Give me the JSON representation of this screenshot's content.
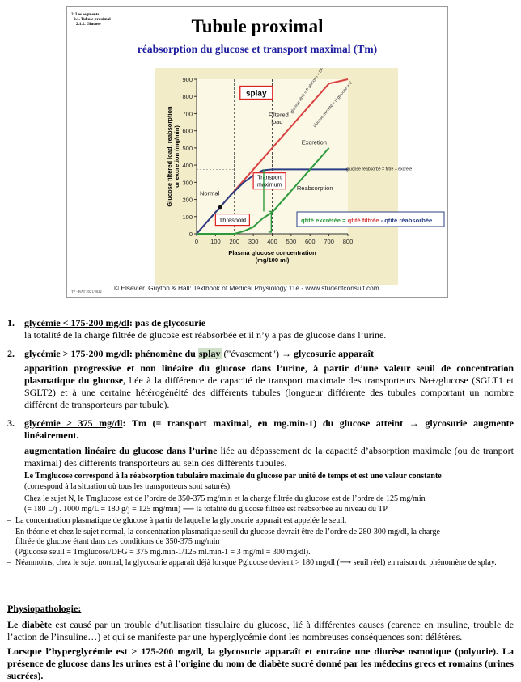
{
  "slide": {
    "toc": [
      "2. Les segments",
      "2.1. Tubule proximal",
      "2.1.2. Glucose"
    ],
    "title": "Tubule proximal",
    "subtitle": "réabsorption du glucose et transport maximal (Tm)",
    "footer": "TP - BAT 2021/2022",
    "credit": "© Elsevier. Guyton & Hall: Textbook of Medical Physiology 11e - www.studentconsult.com"
  },
  "chart_data": {
    "type": "line",
    "xlabel": "Plasma glucose concentration (mg/100 ml)",
    "ylabel": "Glucose filtered load, reabsorption or excretion (mg/min)",
    "xlim": [
      0,
      800
    ],
    "ylim": [
      0,
      900
    ],
    "xticks": [
      0,
      100,
      200,
      300,
      400,
      500,
      600,
      700,
      800
    ],
    "yticks": [
      0,
      100,
      200,
      300,
      400,
      500,
      600,
      700,
      800,
      900
    ],
    "series": [
      {
        "name": "Filtered load",
        "x": [
          0,
          100,
          200,
          300,
          400,
          500,
          600,
          700,
          800
        ],
        "y": [
          0,
          125,
          250,
          375,
          500,
          625,
          750,
          875,
          900
        ]
      },
      {
        "name": "Reabsorption",
        "x": [
          0,
          100,
          180,
          250,
          300,
          350,
          400,
          600,
          800
        ],
        "y": [
          0,
          125,
          225,
          300,
          340,
          370,
          375,
          375,
          375
        ]
      },
      {
        "name": "Excretion",
        "x": [
          0,
          200,
          250,
          300,
          350,
          400,
          500,
          600,
          700
        ],
        "y": [
          0,
          0,
          15,
          40,
          90,
          125,
          250,
          375,
          500
        ]
      }
    ],
    "annotations": {
      "splay": "splay",
      "filtered_load": "Filtered load",
      "excretion": "Excretion",
      "reabsorption": "Reabsorption",
      "transport_maximum": "Transport maximum",
      "normal": "Normal",
      "threshold": "Threshold",
      "slope_filtered": "glucose filtré = P glucose × DFG",
      "slope_excreted": "glucose excrété = U glucose × V",
      "reabsorbed": "glucose réabsorbé = filtré – excrété"
    },
    "legend": {
      "part1": "qtité excrétée = ",
      "part2": "qtité filtrée",
      "part3": " - qtité réabsorbée"
    }
  },
  "colors": {
    "filtered": "#d94040",
    "reabsorption": "#2a3f85",
    "excretion": "#2c9a3c",
    "highlight": "#cfe0c8",
    "subtitle": "#1f1fa0"
  },
  "sections": {
    "s1": {
      "num": "1.",
      "head": "glycémie < 175-200 mg/dl",
      "head_rest": ": pas de glycosurie",
      "text": "la totalité de la charge filtrée de glucose est réabsorbée et il n’y a pas de glucose dans l’urine."
    },
    "s2": {
      "num": "2.",
      "head": "glycémie > 175-200 mg/dl",
      "head_mid": ": phénomène du ",
      "splay": "splay",
      "head_paren": " (\"évasement\") ",
      "head_end": "→ glycosurie apparaît",
      "bold": "apparition progressive et non linéaire du glucose dans l’urine, à partir d’une valeur seuil de concentration plasmatique du glucose,",
      "text": " liée à la différence de capacité de transport maximale des transporteurs Na+/glucose (SGLT1 et SGLT2) et à une certaine hétérogénéité des différents tubules (longueur différente des tubules comportant un nombre différent de transporteurs par tubule)."
    },
    "s3": {
      "num": "3.",
      "head": "glycémie ≥ 375 mg/dl",
      "head_rest": ": Tm (= transport maximal, en mg.min-1) du glucose atteint → glycosurie augmente linéairement.",
      "bold": "augmentation linéaire du glucose dans l’urine",
      "text": " liée au dépassement de la capacité d’absorption maximale (ou de tranport maximal) des différents transporteurs au sein des différents tubules.",
      "tm_def": "Le Tmglucose correspond à la réabsorption tubulaire maximale du glucose par unité de temps et est une valeur constante",
      "tm_def2": "(correspond à la situation où tous les transporteurs sont saturés).",
      "n1": "Chez le sujet N, le Tmglucose est de l’ordre de 350-375 mg/min et la charge filtrée du glucose est de l’ordre de 125 mg/min",
      "n2": "(= 180 L/j . 1000 mg/L = 180 g/j = 125 mg/min) ⟶ la totalité du glucose filtrée est réabsorbée au niveau du TP",
      "d1": "La concentration plasmatique de glucose à partir de laquelle la glycosurie apparait est appelée le seuil.",
      "d2a": "En théorie et chez le sujet normal, la concentration plasmatique seuil du glucose devrait être de l’ordre de 280-300 mg/dl, la charge",
      "d2b": "filtrée de glucose étant dans ces conditions de 350-375 mg/min",
      "d2c": "(Pglucose seuil = Tmglucose/DFG = 375 mg.min-1/125 ml.min-1 = 3 mg/ml = 300 mg/dl).",
      "d3": "Néanmoins, chez le sujet normal, la glycosurie apparait déjà lorsque Pglucose devient > 180 mg/dl (⟶ seuil réel) en raison du phénomène de splay."
    },
    "physio": {
      "title": "Physiopathologie:",
      "p1_bold": "Le diabète",
      "p1": " est causé par un trouble d’utilisation tissulaire du glucose, lié à différentes causes (carence en insuline, trouble de l’action de l’insuline…) et qui se manifeste par une hyperglycémie dont les nombreuses conséquences sont délétères.",
      "p2": "Lorsque l’hyperglycémie est > 175-200 mg/dl, la glycosurie apparaît et entraîne une diurèse osmotique (polyurie). La présence de glucose dans les urines est à l’origine du nom de diabète sucré donné par les médecins grecs et romains (urines sucrées)."
    }
  }
}
